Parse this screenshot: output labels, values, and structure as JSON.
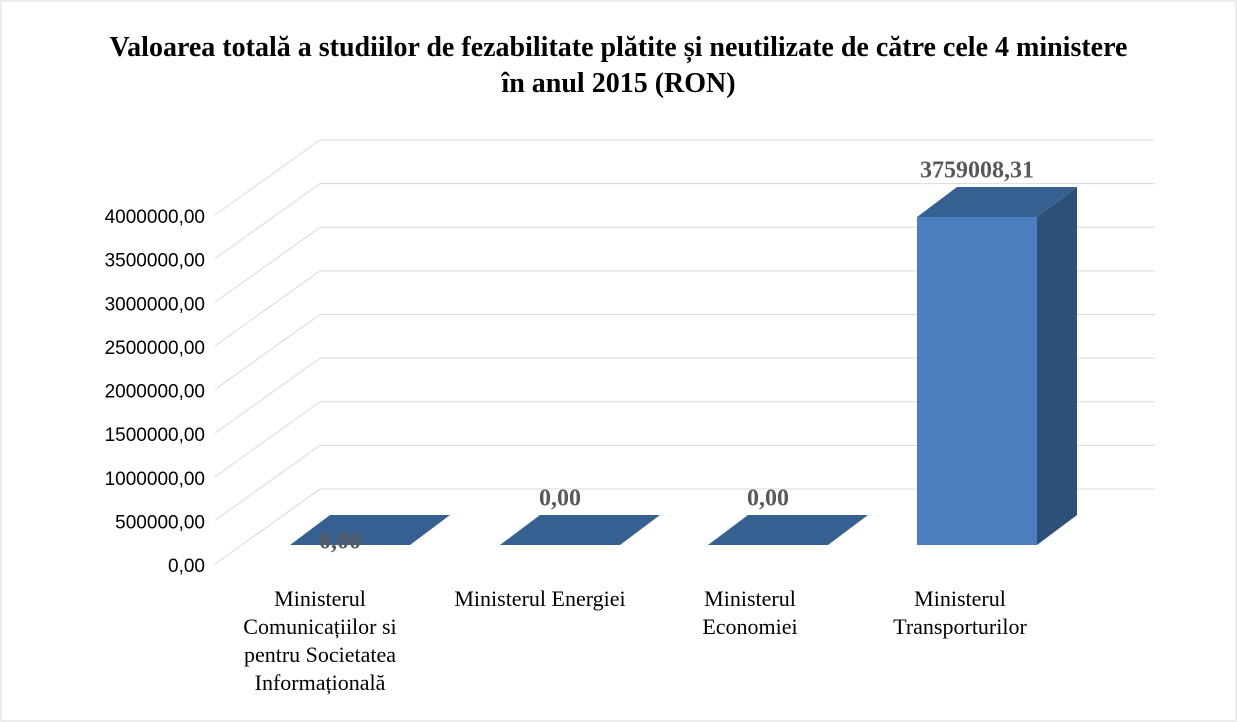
{
  "chart_data": {
    "type": "bar3d",
    "title": "Valoarea totală a studiilor de fezabilitate plătite și neutilizate de către cele 4 ministere în anul 2015 (RON)",
    "categories": [
      "Ministerul Comunicațiilor si pentru Societatea Informațională",
      "Ministerul Energiei",
      "Ministerul Economiei",
      "Ministerul Transporturilor"
    ],
    "values": [
      0,
      0,
      0,
      3759008.31
    ],
    "value_labels": [
      "0,00",
      "0,00",
      "0,00",
      "3759008,31"
    ],
    "color": "#4a7ebf",
    "ylim": [
      0,
      4000000
    ],
    "yticks": [
      {
        "value": 0,
        "label": "0,00"
      },
      {
        "value": 500000,
        "label": "500000,00"
      },
      {
        "value": 1000000,
        "label": "1000000,00"
      },
      {
        "value": 1500000,
        "label": "1500000,00"
      },
      {
        "value": 2000000,
        "label": "2000000,00"
      },
      {
        "value": 2500000,
        "label": "2500000,00"
      },
      {
        "value": 3000000,
        "label": "3000000,00"
      },
      {
        "value": 3500000,
        "label": "3500000,00"
      },
      {
        "value": 4000000,
        "label": "4000000,00"
      }
    ],
    "grid": true
  }
}
